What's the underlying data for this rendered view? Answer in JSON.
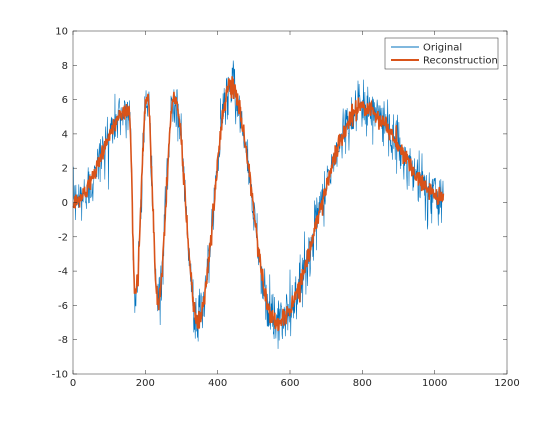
{
  "chart_data": {
    "type": "line",
    "xlim": [
      0,
      1200
    ],
    "ylim": [
      -10,
      10
    ],
    "xticks": [
      0,
      200,
      400,
      600,
      800,
      1000,
      1200
    ],
    "yticks": [
      -10,
      -8,
      -6,
      -4,
      -2,
      0,
      2,
      4,
      6,
      8,
      10
    ],
    "grid": false,
    "legend_position": "top-right",
    "n_points": 1024,
    "series": [
      {
        "name": "Original",
        "color": "#0072BD",
        "description": "noisy Doppler-like chirp, ~1024 samples"
      },
      {
        "name": "Reconstruction",
        "color": "#D95319",
        "description": "denoised reconstruction"
      }
    ],
    "envelope_knots": {
      "x": [
        0,
        50,
        100,
        150,
        200,
        250,
        280,
        330,
        380,
        430,
        480,
        530,
        570,
        620,
        680,
        740,
        800,
        860,
        920,
        980,
        1024
      ],
      "amplitude": [
        2.5,
        3.5,
        4.5,
        5.5,
        6.0,
        6.5,
        6.3,
        6.8,
        7.0,
        6.8,
        7.0,
        7.0,
        7.0,
        6.5,
        6.0,
        5.5,
        5.0,
        4.5,
        3.5,
        2.0,
        0.5
      ]
    },
    "extrema": [
      {
        "x": 0,
        "y": 0
      },
      {
        "x": 155,
        "y": 5.4
      },
      {
        "x": 172,
        "y": -5.3
      },
      {
        "x": 205,
        "y": 6.2
      },
      {
        "x": 235,
        "y": -5.8
      },
      {
        "x": 280,
        "y": 6.2
      },
      {
        "x": 345,
        "y": -6.9
      },
      {
        "x": 435,
        "y": 6.8
      },
      {
        "x": 560,
        "y": -7.0
      },
      {
        "x": 800,
        "y": 5.5
      },
      {
        "x": 1024,
        "y": 0.3
      }
    ]
  }
}
